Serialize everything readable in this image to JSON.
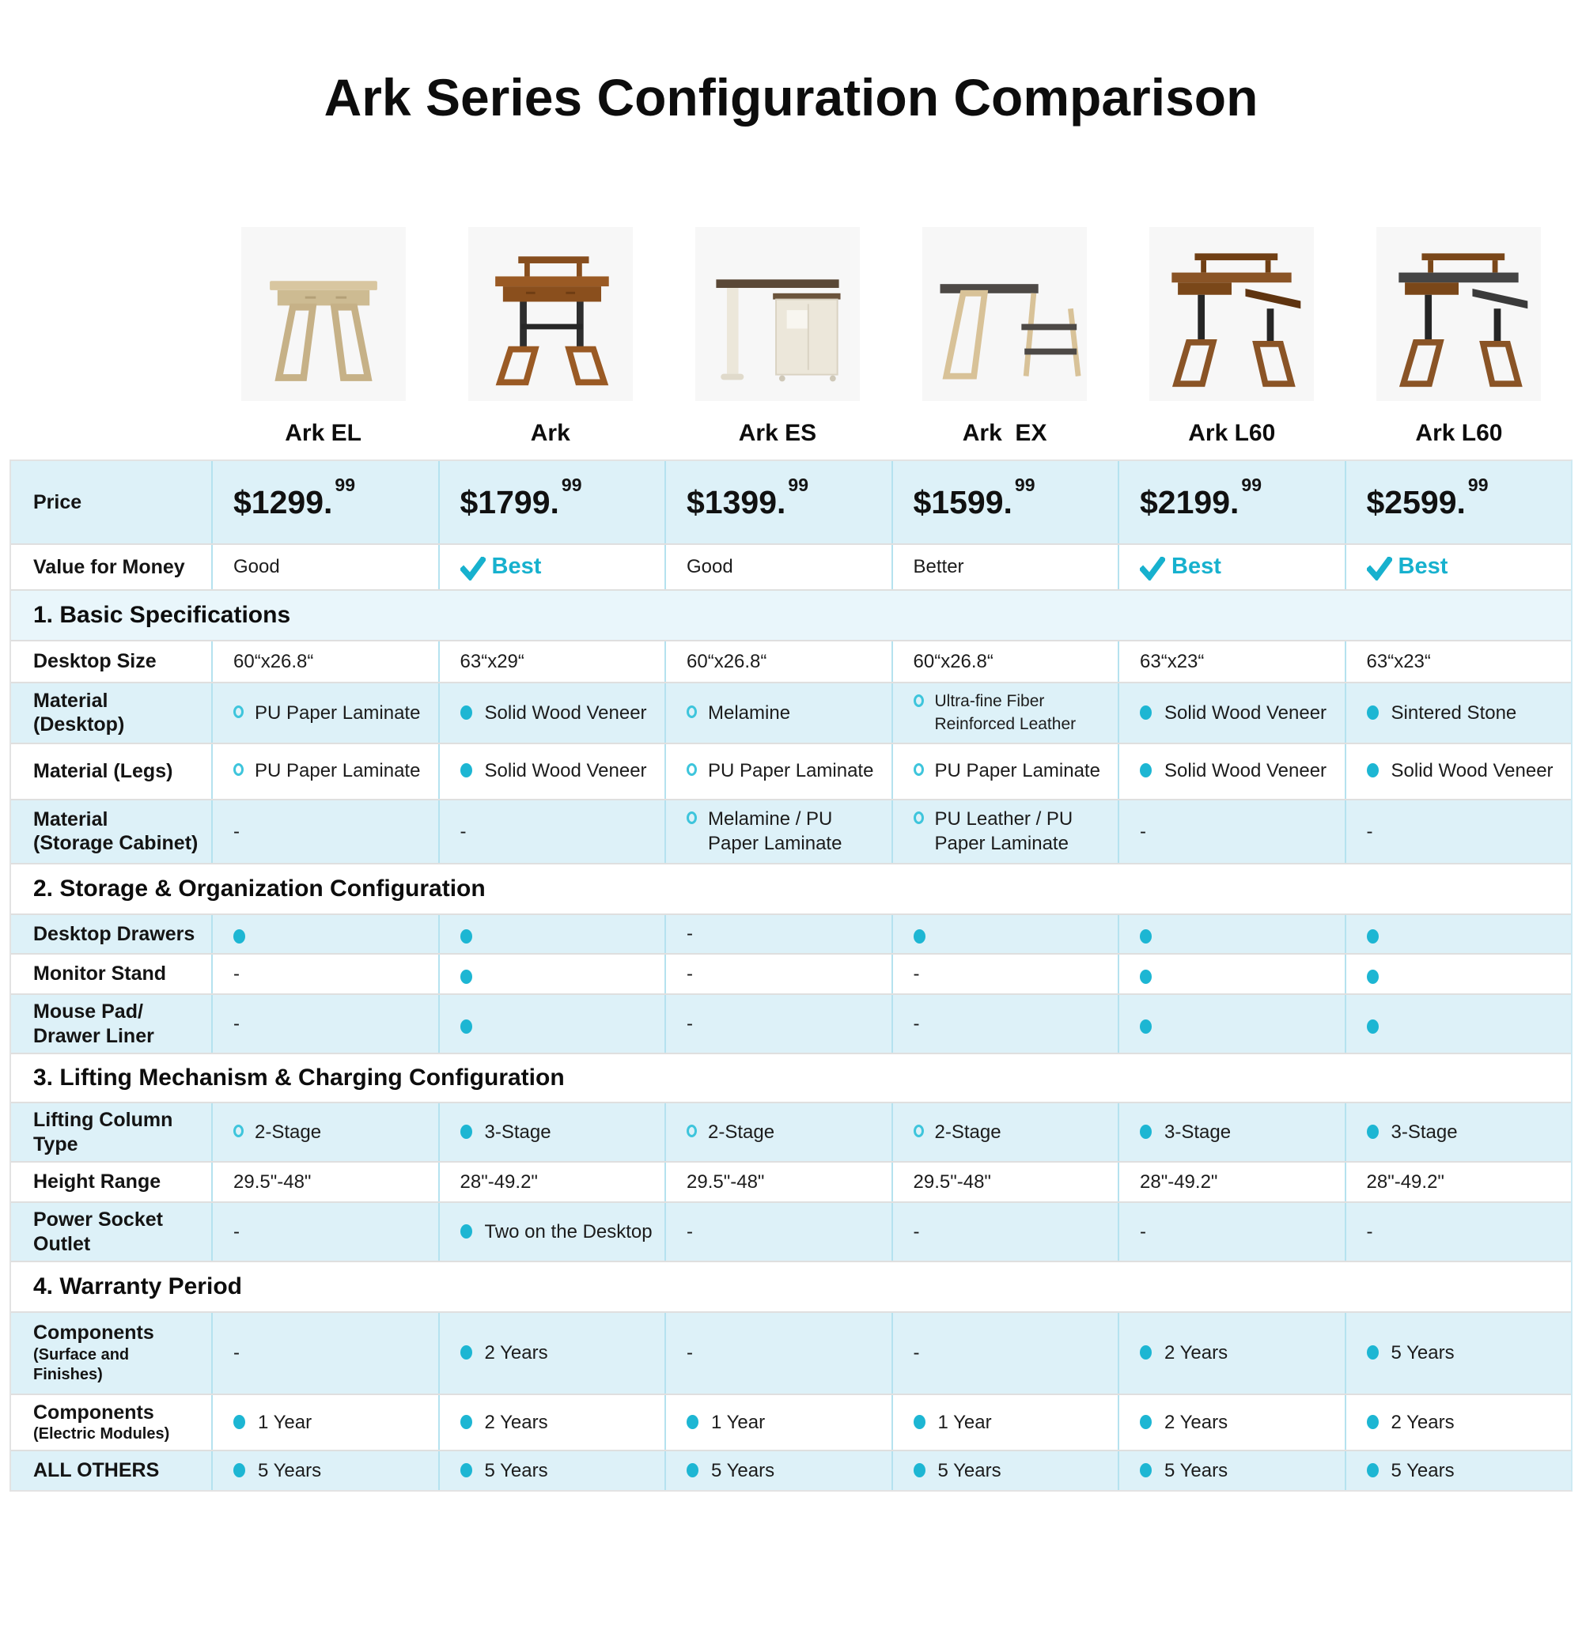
{
  "title": "Ark Series Configuration Comparison",
  "colors": {
    "accent": "#17b1ce",
    "bullet": "#1db6d3",
    "open_circle": "#3ec5dc",
    "row_blue": "#ddf1f8",
    "section_blue": "#e9f6fb",
    "column_line": "#b5e2ef",
    "row_line": "#dfdfdf",
    "image_bg": "#f7f7f7"
  },
  "products": [
    {
      "name": "Ark EL",
      "variant": "ark_el"
    },
    {
      "name": "Ark",
      "variant": "ark"
    },
    {
      "name": "Ark ES",
      "variant": "ark_es"
    },
    {
      "name": "Ark  EX",
      "variant": "ark_ex"
    },
    {
      "name": "Ark L60",
      "variant": "ark_l60"
    },
    {
      "name": "Ark L60",
      "variant": "ark_l60s"
    }
  ],
  "rows": [
    {
      "type": "data",
      "label": "Price",
      "cells": [
        {
          "k": "price",
          "text": "$1299.",
          "sup": "99"
        },
        {
          "k": "price",
          "text": "$1799.",
          "sup": "99"
        },
        {
          "k": "price",
          "text": "$1399.",
          "sup": "99"
        },
        {
          "k": "price",
          "text": "$1599.",
          "sup": "99"
        },
        {
          "k": "price",
          "text": "$2199.",
          "sup": "99"
        },
        {
          "k": "price",
          "text": "$2599.",
          "sup": "99"
        }
      ]
    },
    {
      "type": "data",
      "label": "Value for Money",
      "cells": [
        {
          "k": "plain",
          "text": "Good"
        },
        {
          "k": "best",
          "text": "Best"
        },
        {
          "k": "plain",
          "text": "Good"
        },
        {
          "k": "plain",
          "text": "Better"
        },
        {
          "k": "best",
          "text": "Best"
        },
        {
          "k": "best",
          "text": "Best"
        }
      ]
    },
    {
      "type": "section",
      "label": "1. Basic Specifications"
    },
    {
      "type": "data",
      "label": "Desktop Size",
      "cells": [
        {
          "k": "plain",
          "text": "60“x26.8“"
        },
        {
          "k": "plain",
          "text": "63“x29“"
        },
        {
          "k": "plain",
          "text": "60“x26.8“"
        },
        {
          "k": "plain",
          "text": "60“x26.8“"
        },
        {
          "k": "plain",
          "text": "63“x23“"
        },
        {
          "k": "plain",
          "text": "63“x23“"
        }
      ]
    },
    {
      "type": "data",
      "label": "Material\n(Desktop)",
      "cells": [
        {
          "k": "open",
          "text": "PU Paper Laminate"
        },
        {
          "k": "filled",
          "text": "Solid Wood Veneer"
        },
        {
          "k": "open",
          "text": "Melamine"
        },
        {
          "k": "open",
          "text": "Ultra-fine Fiber Reinforced Leather",
          "small": true
        },
        {
          "k": "filled",
          "text": "Solid Wood Veneer"
        },
        {
          "k": "filled",
          "text": "Sintered Stone"
        }
      ]
    },
    {
      "type": "data",
      "label": "Material (Legs)",
      "cells": [
        {
          "k": "open",
          "text": "PU Paper Laminate"
        },
        {
          "k": "filled",
          "text": "Solid Wood Veneer"
        },
        {
          "k": "open",
          "text": "PU Paper Laminate"
        },
        {
          "k": "open",
          "text": "PU Paper Laminate"
        },
        {
          "k": "filled",
          "text": "Solid Wood Veneer"
        },
        {
          "k": "filled",
          "text": "Solid Wood Veneer"
        }
      ]
    },
    {
      "type": "data",
      "label": "Material\n(Storage Cabinet)",
      "cells": [
        {
          "k": "dash",
          "text": "-"
        },
        {
          "k": "dash",
          "text": "-"
        },
        {
          "k": "open",
          "text": "Melamine / PU Paper Laminate"
        },
        {
          "k": "open",
          "text": "PU Leather / PU Paper Laminate"
        },
        {
          "k": "dash",
          "text": "-"
        },
        {
          "k": "dash",
          "text": "-"
        }
      ]
    },
    {
      "type": "section",
      "label": "2. Storage & Organization Configuration"
    },
    {
      "type": "data",
      "label": "Desktop Drawers",
      "cells": [
        {
          "k": "filled"
        },
        {
          "k": "filled"
        },
        {
          "k": "dash",
          "text": "-"
        },
        {
          "k": "filled"
        },
        {
          "k": "filled"
        },
        {
          "k": "filled"
        }
      ]
    },
    {
      "type": "data",
      "label": "Monitor Stand",
      "cells": [
        {
          "k": "dash",
          "text": "-"
        },
        {
          "k": "filled"
        },
        {
          "k": "dash",
          "text": "-"
        },
        {
          "k": "dash",
          "text": "-"
        },
        {
          "k": "filled"
        },
        {
          "k": "filled"
        }
      ]
    },
    {
      "type": "data",
      "label": "Mouse Pad/\nDrawer Liner",
      "cells": [
        {
          "k": "dash",
          "text": "-"
        },
        {
          "k": "filled"
        },
        {
          "k": "dash",
          "text": "-"
        },
        {
          "k": "dash",
          "text": "-"
        },
        {
          "k": "filled"
        },
        {
          "k": "filled"
        }
      ]
    },
    {
      "type": "section",
      "label": "3. Lifting Mechanism & Charging Configuration"
    },
    {
      "type": "data",
      "label": "Lifting Column\nType",
      "cells": [
        {
          "k": "open",
          "text": "2-Stage"
        },
        {
          "k": "filled",
          "text": "3-Stage"
        },
        {
          "k": "open",
          "text": "2-Stage"
        },
        {
          "k": "open",
          "text": "2-Stage"
        },
        {
          "k": "filled",
          "text": "3-Stage"
        },
        {
          "k": "filled",
          "text": "3-Stage"
        }
      ]
    },
    {
      "type": "data",
      "label": "Height Range",
      "cells": [
        {
          "k": "plain",
          "text": "29.5\"-48\""
        },
        {
          "k": "plain",
          "text": "28\"-49.2\""
        },
        {
          "k": "plain",
          "text": "29.5\"-48\""
        },
        {
          "k": "plain",
          "text": "29.5\"-48\""
        },
        {
          "k": "plain",
          "text": "28\"-49.2\""
        },
        {
          "k": "plain",
          "text": "28\"-49.2\""
        }
      ]
    },
    {
      "type": "data",
      "label": "Power Socket\nOutlet",
      "cells": [
        {
          "k": "dash",
          "text": "-"
        },
        {
          "k": "filled",
          "text": "Two on the Desktop"
        },
        {
          "k": "dash",
          "text": "-"
        },
        {
          "k": "dash",
          "text": "-"
        },
        {
          "k": "dash",
          "text": "-"
        },
        {
          "k": "dash",
          "text": "-"
        }
      ]
    },
    {
      "type": "section",
      "label": "4. Warranty Period"
    },
    {
      "type": "data",
      "label": "Components",
      "sub": "(Surface and\nFinishes)",
      "cells": [
        {
          "k": "dash",
          "text": "-"
        },
        {
          "k": "filled",
          "text": "2 Years"
        },
        {
          "k": "dash",
          "text": "-"
        },
        {
          "k": "dash",
          "text": "-"
        },
        {
          "k": "filled",
          "text": "2 Years"
        },
        {
          "k": "filled",
          "text": "5 Years"
        }
      ]
    },
    {
      "type": "data",
      "label": "Components",
      "sub": "(Electric Modules)",
      "cells": [
        {
          "k": "filled",
          "text": "1 Year"
        },
        {
          "k": "filled",
          "text": "2 Years"
        },
        {
          "k": "filled",
          "text": "1 Year"
        },
        {
          "k": "filled",
          "text": "1 Year"
        },
        {
          "k": "filled",
          "text": "2 Years"
        },
        {
          "k": "filled",
          "text": "2 Years"
        }
      ]
    },
    {
      "type": "data",
      "label": "ALL OTHERS",
      "cells": [
        {
          "k": "filled",
          "text": "5 Years"
        },
        {
          "k": "filled",
          "text": "5 Years"
        },
        {
          "k": "filled",
          "text": "5 Years"
        },
        {
          "k": "filled",
          "text": "5 Years"
        },
        {
          "k": "filled",
          "text": "5 Years"
        },
        {
          "k": "filled",
          "text": "5 Years"
        }
      ]
    }
  ]
}
